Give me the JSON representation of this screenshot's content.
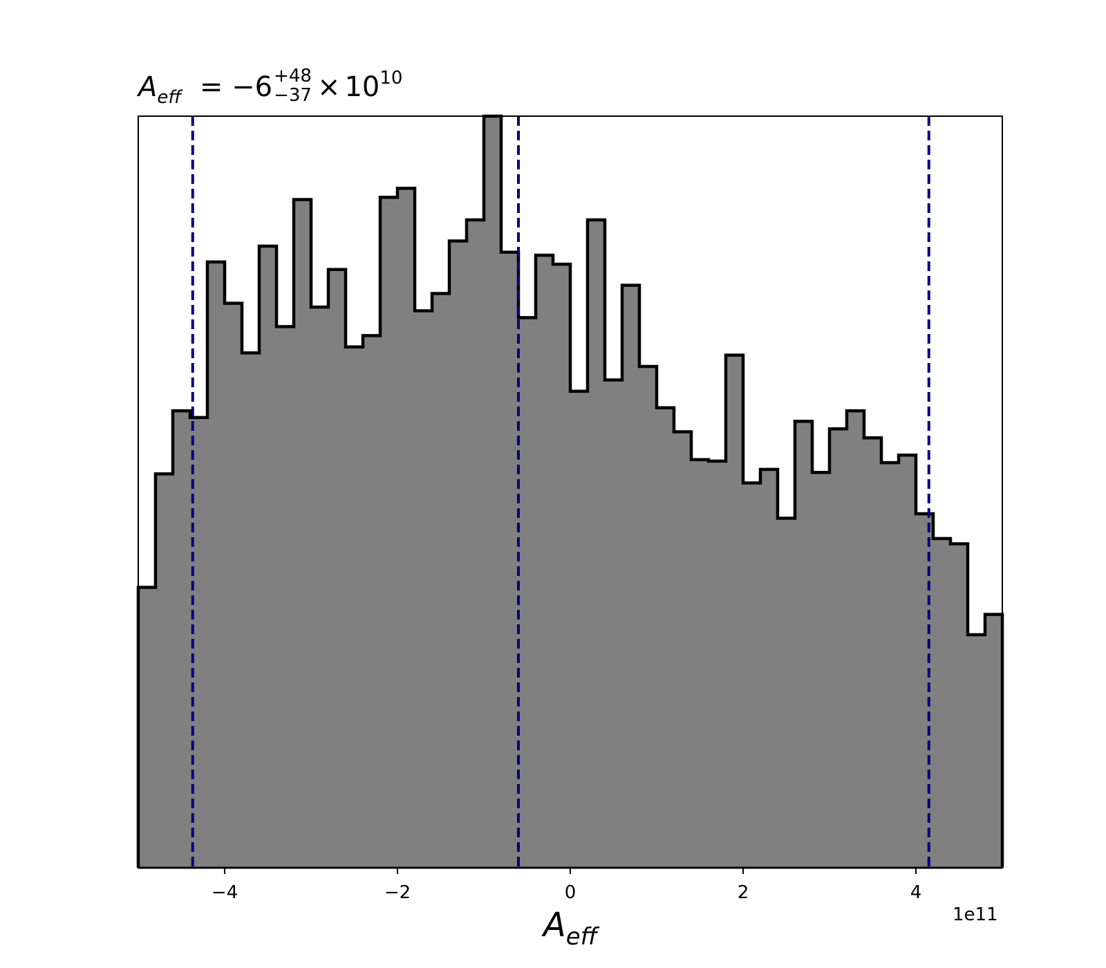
{
  "chart_data": {
    "type": "histogram",
    "title": {
      "symbol": "A",
      "symbol_sub": "eff",
      "equals": "=",
      "value": "−6",
      "upper": "+48",
      "lower": "−37",
      "times": "×",
      "base": "10",
      "exponent": "10"
    },
    "xlabel": {
      "symbol": "A",
      "sub": "eff"
    },
    "x_offset_label": "1e11",
    "xlim": [
      -5.0,
      5.0
    ],
    "ylim": [
      0,
      1.0
    ],
    "xticks": [
      -4,
      -2,
      0,
      2,
      4
    ],
    "xtick_labels": [
      "−4",
      "−2",
      "0",
      "2",
      "4"
    ],
    "y_axis_shown": false,
    "bin_edges": [
      -5.0,
      -4.8,
      -4.6,
      -4.4,
      -4.2,
      -4.0,
      -3.8,
      -3.6,
      -3.4,
      -3.2,
      -3.0,
      -2.8,
      -2.6,
      -2.4,
      -2.2,
      -2.0,
      -1.8,
      -1.6,
      -1.4,
      -1.2,
      -1.0,
      -0.8,
      -0.6,
      -0.4,
      -0.2,
      0.0,
      0.2,
      0.4,
      0.6,
      0.8,
      1.0,
      1.2,
      1.4,
      1.6,
      1.8,
      2.0,
      2.2,
      2.4,
      2.6,
      2.8,
      3.0,
      3.2,
      3.4,
      3.6,
      3.8,
      4.0,
      4.2,
      4.4,
      4.6,
      4.8,
      5.0
    ],
    "values": [
      0.373,
      0.524,
      0.608,
      0.599,
      0.806,
      0.751,
      0.685,
      0.827,
      0.72,
      0.889,
      0.746,
      0.796,
      0.693,
      0.708,
      0.892,
      0.904,
      0.741,
      0.764,
      0.834,
      0.862,
      1.0,
      0.819,
      0.732,
      0.815,
      0.803,
      0.634,
      0.862,
      0.649,
      0.775,
      0.667,
      0.612,
      0.58,
      0.543,
      0.541,
      0.682,
      0.512,
      0.53,
      0.465,
      0.594,
      0.526,
      0.584,
      0.608,
      0.572,
      0.539,
      0.549,
      0.471,
      0.438,
      0.431,
      0.31,
      0.337
    ],
    "fill_color": "#808080",
    "edge_color": "#000000",
    "quantile_lines": [
      -4.37,
      -0.6,
      4.15
    ],
    "quantile_line_color": "#000080",
    "quantile_line_style": "dashed"
  }
}
